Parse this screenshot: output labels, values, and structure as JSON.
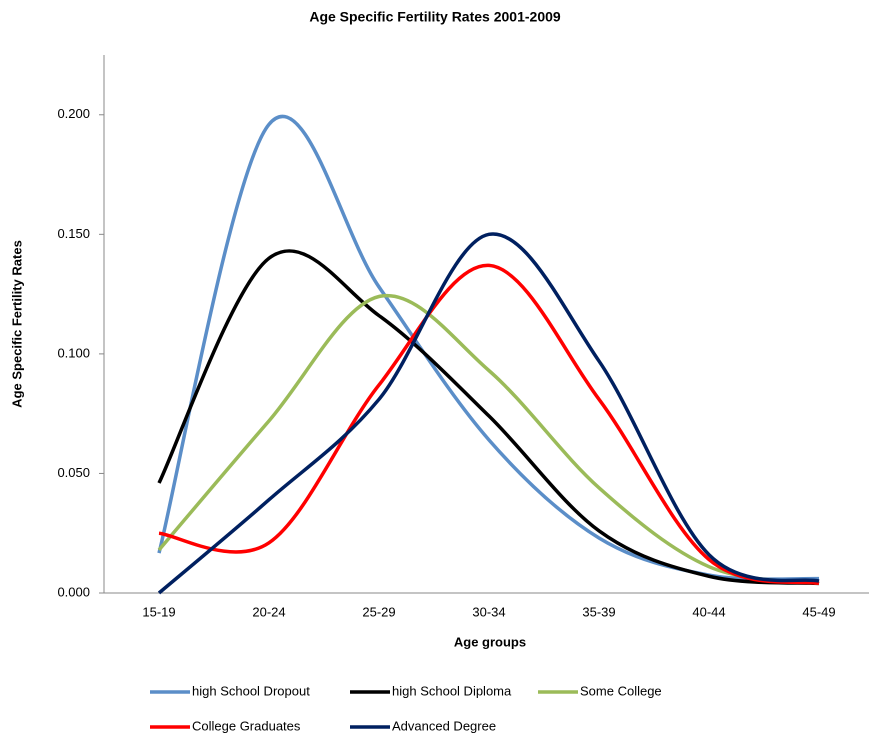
{
  "chart_data": {
    "type": "line",
    "title": "Age Specific Fertility Rates 2001-2009",
    "x_label": "Age groups",
    "y_label": "Age Specific Fertility Rates",
    "categories": [
      "15-19",
      "20-24",
      "25-29",
      "30-34",
      "35-39",
      "40-44",
      "45-49"
    ],
    "series": [
      {
        "name": "high School Dropout",
        "color": "#5b8ec8",
        "values": [
          0.0167,
          0.196,
          0.128,
          0.064,
          0.023,
          0.0075,
          0.006
        ]
      },
      {
        "name": "high School Diploma",
        "color": "#000000",
        "values": [
          0.046,
          0.14,
          0.116,
          0.074,
          0.026,
          0.007,
          0.004
        ]
      },
      {
        "name": "Some College",
        "color": "#9bbb59",
        "values": [
          0.018,
          0.072,
          0.124,
          0.093,
          0.044,
          0.011,
          0.004
        ]
      },
      {
        "name": "College Graduates",
        "color": "#ff0000",
        "values": [
          0.025,
          0.021,
          0.087,
          0.137,
          0.081,
          0.014,
          0.004
        ]
      },
      {
        "name": "Advanced Degree",
        "color": "#002060",
        "values": [
          0.0,
          0.039,
          0.081,
          0.15,
          0.097,
          0.016,
          0.005
        ]
      }
    ],
    "ylim": [
      0,
      0.225
    ],
    "yticks": [
      {
        "value": 0,
        "label": "0.000"
      },
      {
        "value": 0.05,
        "label": "0.050"
      },
      {
        "value": 0.1,
        "label": "0.100"
      },
      {
        "value": 0.15,
        "label": "0.150"
      },
      {
        "value": 0.2,
        "label": "0.200"
      }
    ],
    "smooth": true,
    "grid": false,
    "legend": "bottom"
  }
}
